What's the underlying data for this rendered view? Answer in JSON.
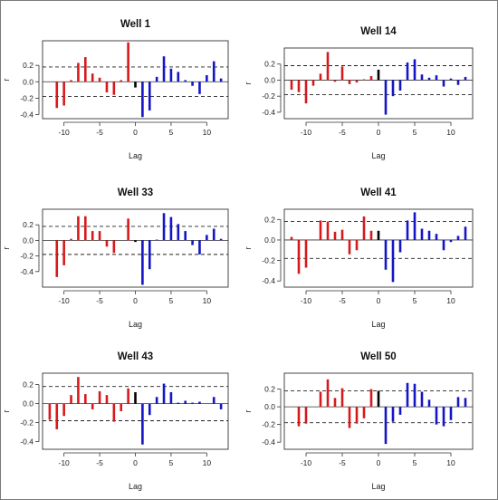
{
  "chart_data": [
    {
      "type": "bar",
      "title": "Well 1",
      "xlabel": "Lag",
      "ylabel": "r",
      "xlim": [
        -13,
        13
      ],
      "ylim": [
        -0.45,
        0.5
      ],
      "xticks": [
        "-10",
        "-5",
        "0",
        "5",
        "10"
      ],
      "yticks": [
        "-0.4",
        "-0.2",
        "0.0",
        "0.2"
      ],
      "ci": 0.18,
      "lags": [
        -12,
        -11,
        -10,
        -9,
        -8,
        -7,
        -6,
        -5,
        -4,
        -3,
        -2,
        -1,
        0,
        1,
        2,
        3,
        4,
        5,
        6,
        7,
        8,
        9,
        10,
        11,
        12
      ],
      "values": [
        0.0,
        -0.32,
        -0.29,
        0.02,
        0.23,
        0.3,
        0.1,
        0.05,
        -0.13,
        -0.16,
        0.02,
        0.48,
        -0.07,
        -0.43,
        -0.35,
        0.06,
        0.31,
        0.16,
        0.12,
        0.02,
        -0.05,
        -0.15,
        0.08,
        0.25,
        0.04
      ],
      "colors": {
        "negative_lag": "#d7191c",
        "zero_lag": "#000000",
        "positive_lag": "#1515c8"
      }
    },
    {
      "type": "bar",
      "title": "Well 14",
      "xlabel": "Lag",
      "ylabel": "r",
      "xlim": [
        -13,
        13
      ],
      "ylim": [
        -0.48,
        0.4
      ],
      "xticks": [
        "-10",
        "-5",
        "0",
        "5",
        "10"
      ],
      "yticks": [
        "-0.4",
        "-0.2",
        "0.0",
        "0.2"
      ],
      "ci": 0.18,
      "lags": [
        -12,
        -11,
        -10,
        -9,
        -8,
        -7,
        -6,
        -5,
        -4,
        -3,
        -2,
        -1,
        0,
        1,
        2,
        3,
        4,
        5,
        6,
        7,
        8,
        9,
        10,
        11,
        12
      ],
      "values": [
        -0.12,
        -0.15,
        -0.29,
        -0.07,
        0.08,
        0.35,
        -0.02,
        0.17,
        -0.05,
        -0.03,
        0.01,
        0.05,
        0.13,
        -0.43,
        -0.2,
        -0.13,
        0.22,
        0.26,
        0.07,
        0.03,
        0.06,
        -0.08,
        0.02,
        -0.06,
        0.04
      ],
      "colors": {
        "negative_lag": "#d7191c",
        "zero_lag": "#000000",
        "positive_lag": "#1515c8"
      }
    },
    {
      "type": "bar",
      "title": "Well 33",
      "xlabel": "Lag",
      "ylabel": "r",
      "xlim": [
        -13,
        13
      ],
      "ylim": [
        -0.6,
        0.4
      ],
      "xticks": [
        "-10",
        "-5",
        "0",
        "5",
        "10"
      ],
      "yticks": [
        "-0.4",
        "-0.2",
        "0.0",
        "0.2"
      ],
      "ci": 0.18,
      "lags": [
        -12,
        -11,
        -10,
        -9,
        -8,
        -7,
        -6,
        -5,
        -4,
        -3,
        -2,
        -1,
        0,
        1,
        2,
        3,
        4,
        5,
        6,
        7,
        8,
        9,
        10,
        11,
        12
      ],
      "values": [
        0.0,
        -0.47,
        -0.32,
        0.02,
        0.31,
        0.31,
        0.12,
        0.12,
        -0.08,
        -0.16,
        0.0,
        0.28,
        -0.02,
        -0.57,
        -0.37,
        0.01,
        0.35,
        0.3,
        0.21,
        0.12,
        -0.06,
        -0.18,
        0.07,
        0.15,
        0.02
      ],
      "colors": {
        "negative_lag": "#d7191c",
        "zero_lag": "#000000",
        "positive_lag": "#1515c8"
      }
    },
    {
      "type": "bar",
      "title": "Well 41",
      "xlabel": "Lag",
      "ylabel": "r",
      "xlim": [
        -13,
        13
      ],
      "ylim": [
        -0.46,
        0.3
      ],
      "xticks": [
        "-10",
        "-5",
        "0",
        "5",
        "10"
      ],
      "yticks": [
        "-0.4",
        "-0.2",
        "0.0",
        "0.2"
      ],
      "ci": 0.18,
      "lags": [
        -12,
        -11,
        -10,
        -9,
        -8,
        -7,
        -6,
        -5,
        -4,
        -3,
        -2,
        -1,
        0,
        1,
        2,
        3,
        4,
        5,
        6,
        7,
        8,
        9,
        10,
        11,
        12
      ],
      "values": [
        0.03,
        -0.33,
        -0.27,
        0.0,
        0.19,
        0.18,
        0.08,
        0.1,
        -0.14,
        -0.1,
        0.23,
        0.09,
        0.09,
        -0.29,
        -0.41,
        -0.12,
        0.19,
        0.27,
        0.11,
        0.09,
        0.06,
        -0.1,
        -0.02,
        0.04,
        0.13
      ],
      "colors": {
        "negative_lag": "#d7191c",
        "zero_lag": "#000000",
        "positive_lag": "#1515c8"
      }
    },
    {
      "type": "bar",
      "title": "Well 43",
      "xlabel": "Lag",
      "ylabel": "r",
      "xlim": [
        -13,
        13
      ],
      "ylim": [
        -0.48,
        0.32
      ],
      "xticks": [
        "-10",
        "-5",
        "0",
        "5",
        "10"
      ],
      "yticks": [
        "-0.4",
        "-0.2",
        "0.0",
        "0.2"
      ],
      "ci": 0.18,
      "lags": [
        -12,
        -11,
        -10,
        -9,
        -8,
        -7,
        -6,
        -5,
        -4,
        -3,
        -2,
        -1,
        0,
        1,
        2,
        3,
        4,
        5,
        6,
        7,
        8,
        9,
        10,
        11,
        12
      ],
      "values": [
        -0.17,
        -0.27,
        -0.13,
        0.09,
        0.28,
        0.1,
        -0.06,
        0.13,
        0.09,
        -0.19,
        -0.08,
        0.16,
        0.12,
        -0.43,
        -0.12,
        0.07,
        0.21,
        0.12,
        0.01,
        0.03,
        0.01,
        0.02,
        0.0,
        0.07,
        -0.06
      ],
      "colors": {
        "negative_lag": "#d7191c",
        "zero_lag": "#000000",
        "positive_lag": "#1515c8"
      }
    },
    {
      "type": "bar",
      "title": "Well 50",
      "xlabel": "Lag",
      "ylabel": "r",
      "xlim": [
        -13,
        13
      ],
      "ylim": [
        -0.48,
        0.38
      ],
      "xticks": [
        "-10",
        "-5",
        "0",
        "5",
        "10"
      ],
      "yticks": [
        "-0.4",
        "-0.2",
        "0.0",
        "0.2"
      ],
      "ci": 0.18,
      "lags": [
        -12,
        -11,
        -10,
        -9,
        -8,
        -7,
        -6,
        -5,
        -4,
        -3,
        -2,
        -1,
        0,
        1,
        2,
        3,
        4,
        5,
        6,
        7,
        8,
        9,
        10,
        11,
        12
      ],
      "values": [
        0.0,
        -0.22,
        -0.19,
        0.0,
        0.17,
        0.31,
        0.1,
        0.21,
        -0.24,
        -0.19,
        -0.13,
        0.2,
        0.18,
        -0.42,
        -0.17,
        -0.09,
        0.27,
        0.26,
        0.17,
        0.08,
        -0.2,
        -0.22,
        -0.15,
        0.11,
        0.1
      ],
      "colors": {
        "negative_lag": "#d7191c",
        "zero_lag": "#000000",
        "positive_lag": "#1515c8"
      }
    }
  ]
}
